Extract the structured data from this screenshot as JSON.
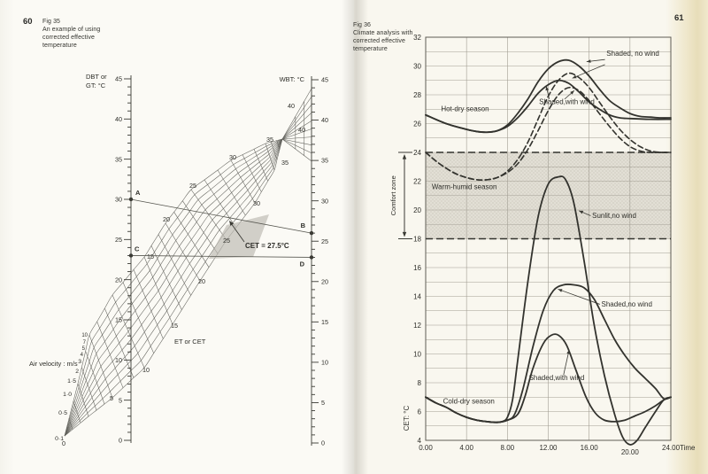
{
  "ink_color": "#3a3a34",
  "pages": {
    "left": {
      "page_number": "60",
      "figure_label": "Fig 35",
      "caption_lines": [
        "An example of using",
        "corrected effective",
        "temperature"
      ]
    },
    "right": {
      "page_number": "61",
      "figure_label": "Fig 36",
      "caption_lines": [
        "Climate analysis with",
        "corrected effective",
        "temperature"
      ]
    }
  },
  "chart_data": [
    {
      "figure": "Fig 35",
      "type": "nomogram",
      "title": "An example of using corrected effective temperature",
      "left_scale": {
        "label_line1": "DBT or",
        "label_line2": "GT: °C",
        "min": 0,
        "max": 45,
        "minor_step": 1,
        "major_step": 5
      },
      "right_scale": {
        "label": "WBT: °C",
        "min": 0,
        "max": 45,
        "minor_step": 1,
        "major_step": 5
      },
      "air_velocity": {
        "label": "Air velocity : m/s",
        "values": [
          "0·1",
          "0·5",
          "1·0",
          "1·5",
          "2",
          "3",
          "4",
          "5",
          "7",
          "10"
        ]
      },
      "et_cet_label": "ET or CET",
      "et_lower_labels": [
        "0",
        "5",
        "10",
        "15",
        "20",
        "25",
        "30",
        "35"
      ],
      "et_upper_labels": [
        "15",
        "20",
        "25",
        "30",
        "35"
      ],
      "fan_labels": [
        "40",
        "40"
      ],
      "points": [
        {
          "id": "A",
          "scale": "DBT",
          "value": 30
        },
        {
          "id": "B",
          "scale": "WBT",
          "value": 26
        },
        {
          "id": "C",
          "scale": "DBT",
          "value": 23
        },
        {
          "id": "D",
          "scale": "WBT",
          "value": 23
        }
      ],
      "connectors": [
        [
          "A",
          "B"
        ],
        [
          "C",
          "D"
        ]
      ],
      "result_annotation": "CET = 27.5°C"
    },
    {
      "figure": "Fig 36",
      "type": "line",
      "xlabel": "Time",
      "ylabel": "CET: °C",
      "xlim": [
        0,
        24
      ],
      "ylim": [
        4,
        32
      ],
      "x_tick_labels": [
        "0.00",
        "4.00",
        "8.00",
        "12.00",
        "16.00",
        "20.00",
        "24.00"
      ],
      "y_tick_step": 2,
      "grid": {
        "x_step_hours": 4,
        "y_step_deg": 1
      },
      "comfort_zone": {
        "label": "Comfort zone",
        "low": 18,
        "high": 24,
        "border": "dashed",
        "shaded": true
      },
      "season_labels": [
        {
          "text": "Hot-dry season",
          "x": 1.5,
          "y": 26.85
        },
        {
          "text": "Warm-humid season",
          "x": 0.6,
          "y": 21.45
        },
        {
          "text": "Cold-dry season",
          "x": 1.7,
          "y": 6.55
        }
      ],
      "curve_labels": [
        {
          "text": "Shaded, no wind",
          "x": 17.7,
          "y": 30.7,
          "leader_starts": [
            [
              17.55,
              30.45
            ],
            [
              17.55,
              30.1
            ]
          ],
          "leader_ends": [
            [
              15.75,
              30.3
            ],
            [
              14.35,
              29.15
            ]
          ]
        },
        {
          "text": "Shaded,with wind",
          "x": 11.1,
          "y": 27.35,
          "leader_starts": [
            [
              12.1,
              27.7
            ],
            [
              13.6,
              27.7
            ]
          ],
          "leader_ends": [
            [
              11.8,
              28.6
            ],
            [
              14.55,
              28.3
            ]
          ]
        },
        {
          "text": "Sunlit,no wind",
          "x": 16.3,
          "y": 19.45,
          "leader_starts": [
            [
              16.15,
              19.6
            ]
          ],
          "leader_ends": [
            [
              15.0,
              19.95
            ]
          ]
        },
        {
          "text": "Shaded,no wind",
          "x": 17.2,
          "y": 13.3,
          "leader_starts": [
            [
              17.05,
              13.45
            ]
          ],
          "leader_ends": [
            [
              12.95,
              14.5
            ]
          ]
        },
        {
          "text": "Shaded,with wind",
          "x": 10.1,
          "y": 8.2,
          "leader_starts": [
            [
              13.5,
              8.55
            ]
          ],
          "leader_ends": [
            [
              14.05,
              10.3
            ]
          ]
        }
      ],
      "series": [
        {
          "name": "Hot-dry season — Shaded, no wind",
          "style": "solid",
          "points": [
            [
              0,
              26.6
            ],
            [
              2,
              26.0
            ],
            [
              4,
              25.6
            ],
            [
              5,
              25.45
            ],
            [
              6,
              25.4
            ],
            [
              7,
              25.5
            ],
            [
              8,
              25.9
            ],
            [
              9,
              26.7
            ],
            [
              10,
              27.7
            ],
            [
              11,
              28.9
            ],
            [
              12,
              29.8
            ],
            [
              13,
              30.3
            ],
            [
              14,
              30.4
            ],
            [
              15,
              30.0
            ],
            [
              16,
              29.3
            ],
            [
              17,
              28.4
            ],
            [
              18,
              27.6
            ],
            [
              19,
              27.1
            ],
            [
              20,
              26.7
            ],
            [
              21,
              26.5
            ],
            [
              22,
              26.45
            ],
            [
              23,
              26.4
            ],
            [
              24,
              26.4
            ]
          ]
        },
        {
          "name": "Hot-dry season — Shaded, with wind",
          "style": "solid",
          "points": [
            [
              0,
              26.6
            ],
            [
              2,
              26.0
            ],
            [
              4,
              25.6
            ],
            [
              5,
              25.45
            ],
            [
              6,
              25.4
            ],
            [
              7,
              25.5
            ],
            [
              8,
              25.8
            ],
            [
              9,
              26.4
            ],
            [
              10,
              27.2
            ],
            [
              11,
              28.1
            ],
            [
              12,
              28.7
            ],
            [
              13,
              29.0
            ],
            [
              14,
              28.8
            ],
            [
              15,
              28.2
            ],
            [
              16,
              27.5
            ],
            [
              17,
              27.0
            ],
            [
              18,
              26.6
            ],
            [
              19,
              26.4
            ],
            [
              20,
              26.35
            ],
            [
              22,
              26.3
            ],
            [
              24,
              26.3
            ]
          ]
        },
        {
          "name": "Warm-humid season — Shaded, no wind",
          "style": "dashed",
          "points": [
            [
              0,
              24.0
            ],
            [
              1,
              23.4
            ],
            [
              2,
              22.9
            ],
            [
              3,
              22.5
            ],
            [
              4,
              22.25
            ],
            [
              5,
              22.1
            ],
            [
              6,
              22.1
            ],
            [
              7,
              22.25
            ],
            [
              8,
              22.7
            ],
            [
              9,
              23.5
            ],
            [
              10,
              24.7
            ],
            [
              11,
              26.3
            ],
            [
              12,
              27.9
            ],
            [
              13,
              29.0
            ],
            [
              14,
              29.5
            ],
            [
              15,
              29.2
            ],
            [
              16,
              28.5
            ],
            [
              17,
              27.5
            ],
            [
              18,
              26.5
            ],
            [
              19,
              25.6
            ],
            [
              20,
              24.9
            ],
            [
              21,
              24.4
            ],
            [
              22,
              24.1
            ],
            [
              23,
              24.0
            ],
            [
              24,
              24.0
            ]
          ]
        },
        {
          "name": "Warm-humid season — Shaded, with wind",
          "style": "dashed",
          "points": [
            [
              0,
              24.0
            ],
            [
              1,
              23.4
            ],
            [
              2,
              22.9
            ],
            [
              3,
              22.5
            ],
            [
              4,
              22.25
            ],
            [
              5,
              22.1
            ],
            [
              6,
              22.1
            ],
            [
              7,
              22.25
            ],
            [
              8,
              22.6
            ],
            [
              9,
              23.2
            ],
            [
              10,
              24.2
            ],
            [
              11,
              25.5
            ],
            [
              12,
              26.9
            ],
            [
              13,
              28.0
            ],
            [
              14,
              28.5
            ],
            [
              15,
              28.3
            ],
            [
              16,
              27.6
            ],
            [
              17,
              26.7
            ],
            [
              18,
              25.8
            ],
            [
              19,
              25.0
            ],
            [
              20,
              24.4
            ],
            [
              21,
              24.1
            ],
            [
              22,
              24.0
            ],
            [
              24,
              24.0
            ]
          ]
        },
        {
          "name": "Cold-dry season — Sunlit, no wind",
          "style": "solid",
          "points": [
            [
              0,
              7.0
            ],
            [
              1,
              6.6
            ],
            [
              2,
              6.3
            ],
            [
              3,
              5.9
            ],
            [
              4,
              5.6
            ],
            [
              5,
              5.4
            ],
            [
              6,
              5.3
            ],
            [
              7,
              5.25
            ],
            [
              7.5,
              5.3
            ],
            [
              8,
              5.6
            ],
            [
              8.5,
              6.8
            ],
            [
              9,
              9.5
            ],
            [
              10,
              15.0
            ],
            [
              11,
              19.5
            ],
            [
              12,
              21.8
            ],
            [
              13,
              22.3
            ],
            [
              13.7,
              22.1
            ],
            [
              14.5,
              20.5
            ],
            [
              15.5,
              16.5
            ],
            [
              16.5,
              12.0
            ],
            [
              17.5,
              8.5
            ],
            [
              18.5,
              5.8
            ],
            [
              19.3,
              4.2
            ],
            [
              20,
              3.7
            ],
            [
              20.7,
              4.0
            ],
            [
              21.5,
              4.9
            ],
            [
              22.5,
              6.0
            ],
            [
              23.3,
              6.8
            ],
            [
              24,
              7.0
            ]
          ]
        },
        {
          "name": "Cold-dry season — Shaded, no wind",
          "style": "solid",
          "points": [
            [
              0,
              7.0
            ],
            [
              1,
              6.6
            ],
            [
              2,
              6.3
            ],
            [
              3,
              5.9
            ],
            [
              4,
              5.6
            ],
            [
              5,
              5.4
            ],
            [
              6,
              5.3
            ],
            [
              7,
              5.25
            ],
            [
              8,
              5.4
            ],
            [
              8.7,
              5.8
            ],
            [
              9.5,
              7.5
            ],
            [
              10.5,
              10.5
            ],
            [
              11.5,
              13.0
            ],
            [
              12.5,
              14.4
            ],
            [
              13.5,
              14.8
            ],
            [
              14.5,
              14.8
            ],
            [
              15.5,
              14.6
            ],
            [
              16.5,
              13.8
            ],
            [
              17.5,
              12.4
            ],
            [
              18.5,
              11.0
            ],
            [
              19.5,
              9.9
            ],
            [
              20.5,
              9.0
            ],
            [
              21.5,
              8.3
            ],
            [
              22.5,
              7.6
            ],
            [
              23.3,
              6.9
            ],
            [
              24,
              7.0
            ]
          ]
        },
        {
          "name": "Cold-dry season — Shaded, with wind",
          "style": "solid",
          "points": [
            [
              0,
              7.0
            ],
            [
              1,
              6.6
            ],
            [
              2,
              6.3
            ],
            [
              3,
              5.9
            ],
            [
              4,
              5.6
            ],
            [
              5,
              5.4
            ],
            [
              6,
              5.3
            ],
            [
              7,
              5.25
            ],
            [
              8,
              5.4
            ],
            [
              9,
              5.8
            ],
            [
              9.7,
              7.0
            ],
            [
              10.5,
              9.0
            ],
            [
              11.5,
              10.7
            ],
            [
              12.3,
              11.3
            ],
            [
              13,
              11.3
            ],
            [
              13.8,
              10.6
            ],
            [
              14.7,
              8.9
            ],
            [
              15.7,
              7.0
            ],
            [
              16.6,
              5.9
            ],
            [
              17.5,
              5.4
            ],
            [
              18.5,
              5.3
            ],
            [
              19.5,
              5.4
            ],
            [
              20.5,
              5.7
            ],
            [
              21.5,
              6.0
            ],
            [
              22.5,
              6.4
            ],
            [
              23.3,
              6.8
            ],
            [
              24,
              7.0
            ]
          ]
        }
      ]
    }
  ]
}
